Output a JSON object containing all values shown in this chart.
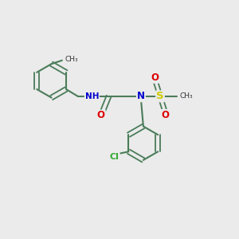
{
  "bg": "#ebebeb",
  "bond_color": "#4a7c59",
  "N_color": "#0000cc",
  "O_color": "#dd0000",
  "S_color": "#cccc00",
  "Cl_color": "#33aa33",
  "figsize": [
    3.0,
    3.0
  ],
  "dpi": 100,
  "xlim": [
    0,
    10
  ],
  "ylim": [
    0,
    10
  ]
}
